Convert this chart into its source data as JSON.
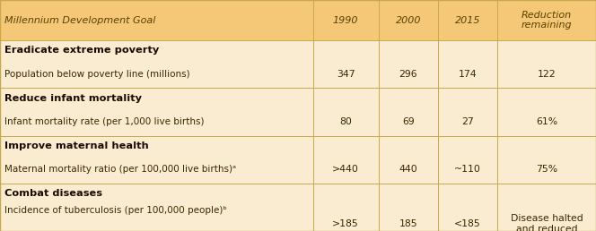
{
  "header_bg": "#f5c878",
  "body_bg": "#faecd0",
  "border_color": "#c8a84b",
  "header_text_color": "#5a4000",
  "body_text_color": "#3a2800",
  "bold_text_color": "#1a0a00",
  "figsize": [
    6.64,
    2.58
  ],
  "dpi": 100,
  "col_dividers": [
    0.525,
    0.635,
    0.735,
    0.835
  ],
  "col_centers_data": [
    0.58,
    0.685,
    0.785,
    0.917
  ],
  "headers": [
    "Millennium Development Goal",
    "1990",
    "2000",
    "2015",
    "Reduction\nremaining"
  ],
  "rows": [
    {
      "section_bold": "Eradicate extreme poverty",
      "label": "Population below poverty line (millions)",
      "v1990": "347",
      "v2000": "296",
      "v2015": "174",
      "reduction": "122",
      "label_on_separate_line": false
    },
    {
      "section_bold": "Reduce infant mortality",
      "label": "Infant mortality rate (per 1,000 live births)",
      "v1990": "80",
      "v2000": "69",
      "v2015": "27",
      "reduction": "61%",
      "label_on_separate_line": false
    },
    {
      "section_bold": "Improve maternal health",
      "label": "Maternal mortality ratio (per 100,000 live births)ᵃ",
      "v1990": ">440",
      "v2000": "440",
      "v2015": "~110",
      "reduction": "75%",
      "label_on_separate_line": false
    },
    {
      "section_bold": "Combat diseases",
      "label": "Incidence of tuberculosis (per 100,000 people)ᵇ",
      "v1990": ">185",
      "v2000": "185",
      "v2015": "<185",
      "reduction": "Disease halted\nand reduced",
      "label_on_separate_line": true
    }
  ]
}
